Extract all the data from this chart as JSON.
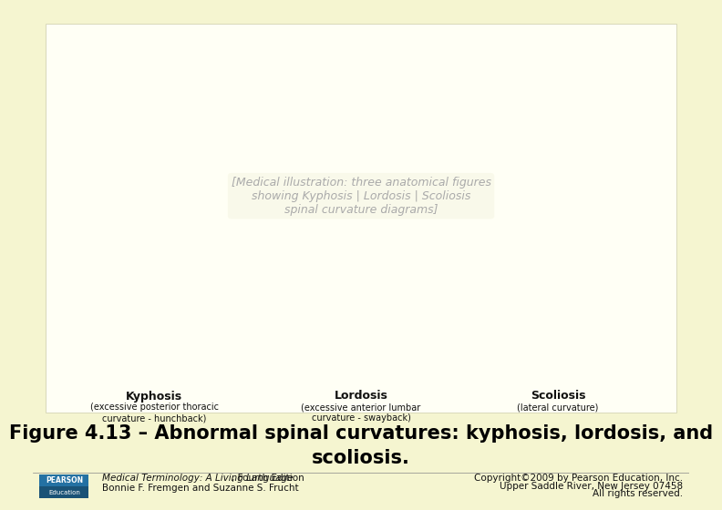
{
  "background_color": "#f5f5d0",
  "image_area_bg": "#fffff5",
  "title_line1": "Figure 4.13 – Abnormal spinal curvatures: kyphosis, lordosis, and",
  "title_line2": "scoliosis.",
  "title_fontsize": 15,
  "title_color": "#000000",
  "footer_left_line1": "Medical Terminology: A Living Language",
  "footer_left_line1_suffix": ", Fourth Edition",
  "footer_left_line2": "Bonnie F. Fremgen and Suzanne S. Frucht",
  "footer_right_line1": "Copyright©2009 by Pearson Education, Inc.",
  "footer_right_line2": "Upper Saddle River, New Jersey 07458",
  "footer_right_line3": "All rights reserved.",
  "footer_fontsize": 7.5,
  "pearson_box_color1": "#1a5276",
  "pearson_box_color2": "#2471a3",
  "label1": "Kyphosis",
  "label1_sub": "(excessive posterior thoracic\ncurvature - hunchback)",
  "label2": "Lordosis",
  "label2_sub": "(excessive anterior lumbar\ncurvature - swayback)",
  "label3": "Scoliosis",
  "label3_sub": "(lateral curvature)",
  "label_fontsize": 8,
  "label_bold_fontsize": 9
}
